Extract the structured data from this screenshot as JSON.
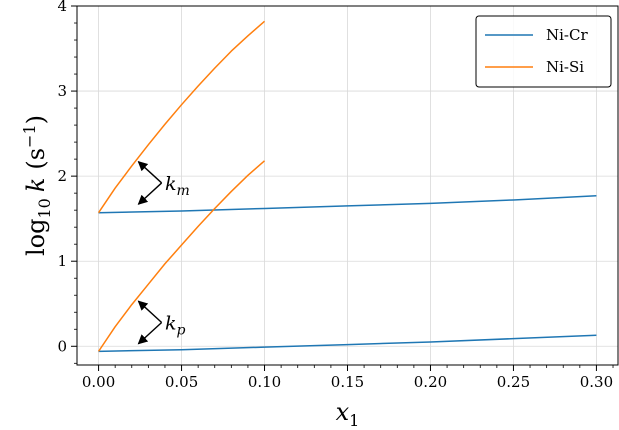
{
  "chart_data": {
    "type": "line",
    "xlabel": "x",
    "xlabel_sub": "1",
    "ylabel": {
      "prefix": "log",
      "sub": "10",
      "var": "k",
      "unit_open": "(s",
      "unit_sup": "−1",
      "unit_close": ")"
    },
    "xlim": [
      -0.013,
      0.313
    ],
    "ylim": [
      -0.22,
      4.0
    ],
    "xticks": [
      0.0,
      0.05,
      0.1,
      0.15,
      0.2,
      0.25,
      0.3
    ],
    "xtick_labels": [
      "0.00",
      "0.05",
      "0.10",
      "0.15",
      "0.20",
      "0.25",
      "0.30"
    ],
    "yticks": [
      0,
      1,
      2,
      3,
      4
    ],
    "ytick_labels": [
      "0",
      "1",
      "2",
      "3",
      "4"
    ],
    "grid": true,
    "legend_position": "top-right",
    "colors": {
      "ni_cr": "#1f77b4",
      "ni_si": "#ff7f0e",
      "grid": "#d9d9d9"
    },
    "series": [
      {
        "name": "Ni-Cr",
        "group": "k_m",
        "color_key": "ni_cr",
        "in_legend": true,
        "x": [
          0.0,
          0.05,
          0.1,
          0.15,
          0.2,
          0.25,
          0.3
        ],
        "y": [
          1.57,
          1.59,
          1.62,
          1.65,
          1.68,
          1.72,
          1.77
        ]
      },
      {
        "name": "Ni-Si",
        "group": "k_m",
        "color_key": "ni_si",
        "in_legend": true,
        "x": [
          0.0,
          0.01,
          0.02,
          0.03,
          0.04,
          0.05,
          0.06,
          0.07,
          0.08,
          0.09,
          0.1
        ],
        "y": [
          1.57,
          1.86,
          2.12,
          2.37,
          2.61,
          2.84,
          3.06,
          3.27,
          3.47,
          3.65,
          3.82
        ]
      },
      {
        "name": "Ni-Cr",
        "group": "k_p",
        "color_key": "ni_cr",
        "in_legend": false,
        "x": [
          0.0,
          0.05,
          0.1,
          0.15,
          0.2,
          0.25,
          0.3
        ],
        "y": [
          -0.06,
          -0.04,
          -0.01,
          0.02,
          0.05,
          0.09,
          0.13
        ]
      },
      {
        "name": "Ni-Si",
        "group": "k_p",
        "color_key": "ni_si",
        "in_legend": false,
        "x": [
          0.0,
          0.01,
          0.02,
          0.03,
          0.04,
          0.05,
          0.06,
          0.07,
          0.08,
          0.09,
          0.1
        ],
        "y": [
          -0.06,
          0.23,
          0.49,
          0.73,
          0.97,
          1.19,
          1.41,
          1.62,
          1.82,
          2.01,
          2.18
        ]
      }
    ],
    "annotations": [
      {
        "text": "k",
        "sub": "m",
        "label_x": 0.04,
        "label_y": 1.92,
        "targets": [
          [
            0.024,
            2.17
          ],
          [
            0.024,
            1.67
          ]
        ],
        "vertex": [
          0.038,
          1.92
        ]
      },
      {
        "text": "k",
        "sub": "p",
        "label_x": 0.04,
        "label_y": 0.28,
        "targets": [
          [
            0.024,
            0.53
          ],
          [
            0.024,
            0.03
          ]
        ],
        "vertex": [
          0.038,
          0.28
        ]
      }
    ]
  }
}
